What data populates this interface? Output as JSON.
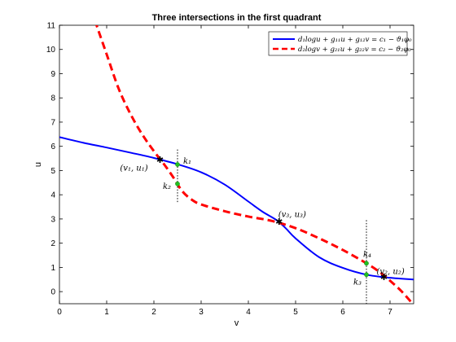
{
  "chart_data": {
    "type": "line",
    "title": "Three intersections in the first quadrant",
    "xlabel": "v",
    "ylabel": "u",
    "xlim": [
      0,
      7.5
    ],
    "ylim": [
      -0.5,
      11
    ],
    "xticks": [
      "0",
      "1",
      "2",
      "3",
      "4",
      "5",
      "6",
      "7"
    ],
    "yticks": [
      "0",
      "1",
      "2",
      "3",
      "4",
      "5",
      "6",
      "7",
      "8",
      "9",
      "10",
      "11"
    ],
    "grid": false,
    "legend_position": "top-right",
    "series": [
      {
        "name": "d₁logu + g₁₁u + g₁₂v = c₁ − ϑ₁φ₀",
        "style": "solid",
        "color": "#0000ff",
        "points": [
          [
            0,
            6.38
          ],
          [
            0.5,
            6.15
          ],
          [
            1,
            5.95
          ],
          [
            1.5,
            5.74
          ],
          [
            2,
            5.52
          ],
          [
            2.5,
            5.26
          ],
          [
            3,
            4.93
          ],
          [
            3.5,
            4.42
          ],
          [
            4,
            3.72
          ],
          [
            4.3,
            3.3
          ],
          [
            4.6,
            2.95
          ],
          [
            4.8,
            2.6
          ],
          [
            5,
            2.2
          ],
          [
            5.5,
            1.42
          ],
          [
            6,
            0.98
          ],
          [
            6.5,
            0.7
          ],
          [
            7,
            0.57
          ],
          [
            7.5,
            0.5
          ]
        ]
      },
      {
        "name": "d₂logv + g₂₁u + g₂₂v = c₂ − ϑ₂φ₀",
        "style": "dashed",
        "color": "#ff0000",
        "points": [
          [
            0.75,
            11.2
          ],
          [
            1,
            9.8
          ],
          [
            1.25,
            8.4
          ],
          [
            1.5,
            7.35
          ],
          [
            1.75,
            6.5
          ],
          [
            2,
            5.8
          ],
          [
            2.2,
            5.3
          ],
          [
            2.4,
            4.75
          ],
          [
            2.6,
            4.15
          ],
          [
            2.8,
            3.8
          ],
          [
            3,
            3.6
          ],
          [
            3.5,
            3.32
          ],
          [
            4,
            3.1
          ],
          [
            4.5,
            2.92
          ],
          [
            5,
            2.62
          ],
          [
            5.5,
            2.2
          ],
          [
            6,
            1.72
          ],
          [
            6.5,
            1.17
          ],
          [
            6.8,
            0.78
          ],
          [
            7,
            0.45
          ],
          [
            7.25,
            0
          ],
          [
            7.5,
            -0.55
          ]
        ]
      }
    ],
    "vertical_dotted_lines": [
      {
        "x": 2.5,
        "y0": 3.7,
        "y1": 5.9
      },
      {
        "x": 6.5,
        "y0": -0.75,
        "y1": 3.0
      }
    ],
    "intersections": [
      {
        "label": "(v₁, u₁)",
        "x": 2.13,
        "y": 5.44
      },
      {
        "label": "(v₃, u₃)",
        "x": 4.65,
        "y": 2.88
      },
      {
        "label": "(v₂, u₂)",
        "x": 6.87,
        "y": 0.6
      }
    ],
    "k_points": [
      {
        "label": "k₁",
        "x": 2.5,
        "y": 5.25
      },
      {
        "label": "k₂",
        "x": 2.5,
        "y": 4.45
      },
      {
        "label": "k₃",
        "x": 6.5,
        "y": 0.7
      },
      {
        "label": "k₄",
        "x": 6.5,
        "y": 1.17
      }
    ]
  }
}
